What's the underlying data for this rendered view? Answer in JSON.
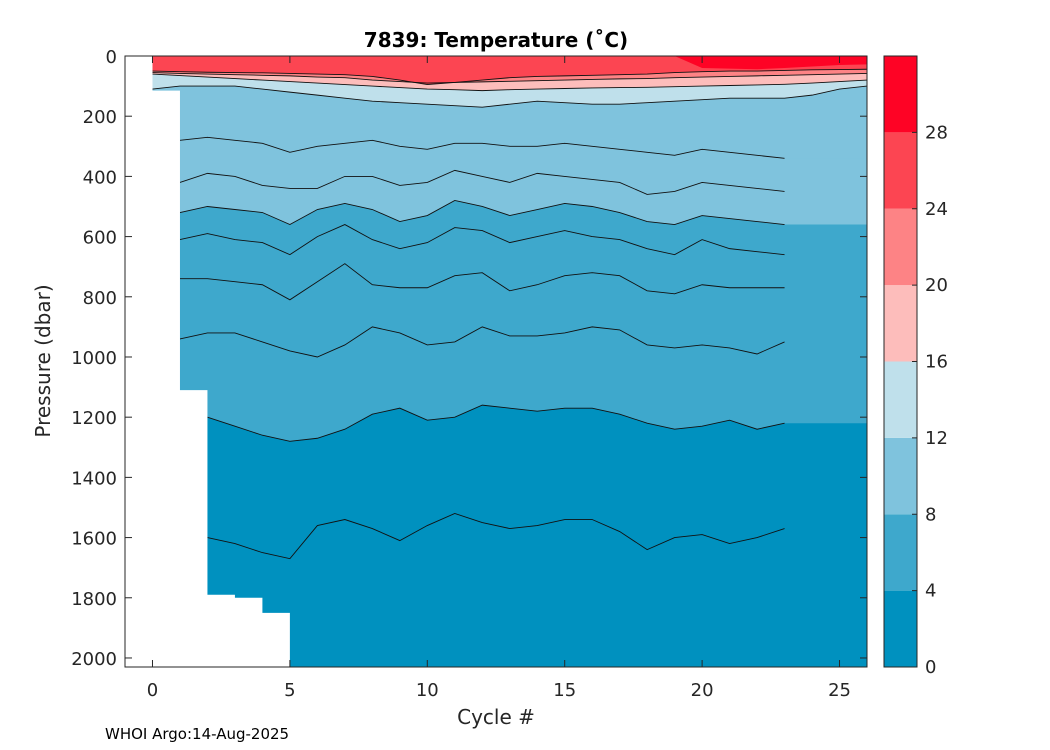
{
  "chart_data": {
    "type": "heatmap",
    "title": "7839:  Temperature (˚C)",
    "xlabel": "Cycle #",
    "ylabel": "Pressure (dbar)",
    "xlim": [
      -1,
      26
    ],
    "ylim": [
      0,
      2030
    ],
    "y_reversed": true,
    "xticks": [
      0,
      5,
      10,
      15,
      20,
      25
    ],
    "yticks": [
      0,
      200,
      400,
      600,
      800,
      1000,
      1200,
      1400,
      1600,
      1800,
      2000
    ],
    "colorbar": {
      "ticks": [
        0,
        4,
        8,
        12,
        16,
        20,
        24,
        28
      ],
      "range": [
        0,
        32
      ],
      "bins": [
        {
          "from": 0,
          "to": 4,
          "color": "#0091bf"
        },
        {
          "from": 4,
          "to": 8,
          "color": "#3ea8cc"
        },
        {
          "from": 8,
          "to": 12,
          "color": "#7fc3dd"
        },
        {
          "from": 12,
          "to": 16,
          "color": "#bfe0eb"
        },
        {
          "from": 16,
          "to": 20,
          "color": "#fdbdbb"
        },
        {
          "from": 20,
          "to": 24,
          "color": "#fd8385"
        },
        {
          "from": 24,
          "to": 28,
          "color": "#fc4552"
        },
        {
          "from": 28,
          "to": 32,
          "color": "#fe0325"
        }
      ]
    },
    "x": [
      0,
      1,
      2,
      3,
      4,
      5,
      6,
      7,
      8,
      9,
      10,
      11,
      12,
      13,
      14,
      15,
      16,
      17,
      18,
      19,
      20,
      21,
      22,
      23,
      24,
      25,
      26
    ],
    "profile_max_pressure": [
      115,
      1110,
      1790,
      1800,
      1850,
      2030,
      2030,
      2030,
      2030,
      2030,
      2030,
      2030,
      2030,
      2030,
      2030,
      2030,
      2030,
      2030,
      2030,
      2030,
      2030,
      2030,
      2030,
      2030,
      2030,
      2030,
      2030
    ],
    "isotherms": [
      {
        "temp": 2,
        "start": 2,
        "pressure": [
          1600,
          1620,
          1650,
          1670,
          1560,
          1540,
          1570,
          1610,
          1560,
          1520,
          1550,
          1570,
          1560,
          1540,
          1540,
          1580,
          1640,
          1600,
          1590,
          1620,
          1600,
          1570
        ]
      },
      {
        "temp": 4,
        "start": 2,
        "pressure": [
          1200,
          1230,
          1260,
          1280,
          1270,
          1240,
          1190,
          1170,
          1210,
          1200,
          1160,
          1170,
          1180,
          1170,
          1170,
          1190,
          1220,
          1240,
          1230,
          1210,
          1240,
          1220
        ]
      },
      {
        "temp": 5,
        "start": 1,
        "pressure": [
          940,
          920,
          920,
          950,
          980,
          1000,
          960,
          900,
          920,
          960,
          950,
          900,
          930,
          930,
          920,
          900,
          910,
          960,
          970,
          960,
          970,
          990,
          950
        ]
      },
      {
        "temp": 6,
        "start": 1,
        "pressure": [
          740,
          740,
          750,
          760,
          810,
          750,
          690,
          760,
          770,
          770,
          730,
          720,
          780,
          760,
          730,
          720,
          730,
          780,
          790,
          760,
          770,
          770,
          770
        ]
      },
      {
        "temp": 7,
        "start": 1,
        "pressure": [
          610,
          590,
          610,
          620,
          660,
          600,
          560,
          610,
          640,
          620,
          570,
          580,
          620,
          600,
          580,
          600,
          610,
          640,
          660,
          610,
          640,
          650,
          660
        ]
      },
      {
        "temp": 8,
        "start": 1,
        "pressure": [
          520,
          500,
          510,
          520,
          560,
          510,
          490,
          510,
          550,
          530,
          480,
          500,
          530,
          510,
          490,
          500,
          520,
          550,
          560,
          530,
          540,
          550,
          560
        ]
      },
      {
        "temp": 9,
        "start": 1,
        "pressure": [
          420,
          390,
          400,
          430,
          440,
          440,
          400,
          400,
          430,
          420,
          380,
          400,
          420,
          390,
          400,
          410,
          420,
          460,
          450,
          420,
          430,
          440,
          450
        ]
      },
      {
        "temp": 10,
        "start": 1,
        "pressure": [
          280,
          270,
          280,
          290,
          320,
          300,
          290,
          280,
          300,
          310,
          290,
          290,
          300,
          300,
          290,
          300,
          310,
          320,
          330,
          310,
          320,
          330,
          340
        ]
      },
      {
        "temp": 12,
        "start": 0,
        "pressure": [
          110,
          100,
          100,
          100,
          110,
          120,
          130,
          140,
          150,
          155,
          160,
          165,
          170,
          160,
          150,
          155,
          160,
          160,
          155,
          150,
          145,
          140,
          140,
          140,
          130,
          110,
          100
        ]
      },
      {
        "temp": 16,
        "start": 0,
        "pressure": [
          60,
          65,
          70,
          75,
          80,
          85,
          90,
          95,
          100,
          105,
          110,
          112,
          115,
          112,
          110,
          108,
          106,
          105,
          104,
          102,
          100,
          98,
          96,
          94,
          90,
          85,
          80
        ]
      },
      {
        "temp": 20,
        "start": 0,
        "pressure": [
          55,
          58,
          60,
          62,
          64,
          66,
          70,
          72,
          80,
          85,
          90,
          88,
          86,
          84,
          82,
          80,
          78,
          76,
          75,
          72,
          70,
          68,
          66,
          64,
          62,
          60,
          58
        ]
      },
      {
        "temp": 24,
        "start": 0,
        "pressure": [
          50,
          52,
          54,
          55,
          56,
          58,
          60,
          62,
          68,
          80,
          95,
          88,
          80,
          72,
          68,
          66,
          64,
          62,
          60,
          55,
          52,
          50,
          50,
          48,
          46,
          45,
          44
        ]
      },
      {
        "temp": 28,
        "start": 0,
        "pressure": [
          0,
          0,
          0,
          0,
          0,
          0,
          0,
          0,
          0,
          0,
          0,
          0,
          0,
          0,
          0,
          0,
          0,
          0,
          0,
          0,
          40,
          42,
          44,
          40,
          35,
          30,
          28
        ]
      }
    ],
    "footer": "WHOI Argo:14-Aug-2025"
  }
}
